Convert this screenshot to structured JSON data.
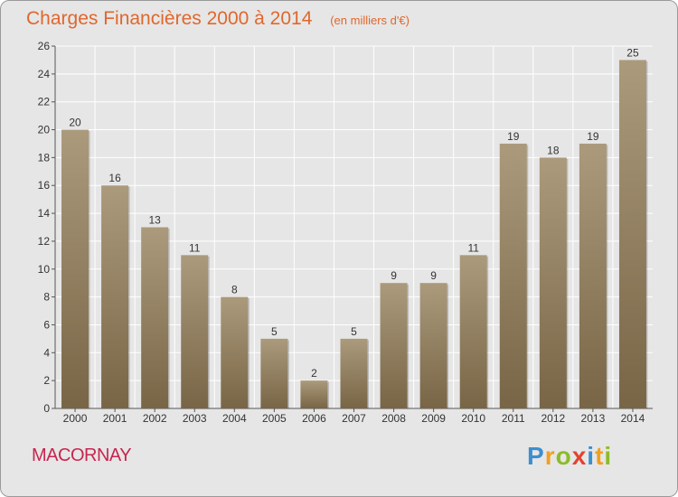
{
  "title": "Charges Financières 2000 à 2014",
  "subtitle": "(en milliers d'€)",
  "commune": "MACORNAY",
  "logo": {
    "text": "Proxiti",
    "letters": [
      {
        "ch": "P",
        "color": "#3c8fd0"
      },
      {
        "ch": "r",
        "color": "#f0a021"
      },
      {
        "ch": "o",
        "color": "#8dbb2a"
      },
      {
        "ch": "x",
        "color": "#e2432e"
      },
      {
        "ch": "i",
        "color": "#3c8fd0"
      },
      {
        "ch": "t",
        "color": "#f0a021"
      },
      {
        "ch": "i",
        "color": "#8dbb2a"
      }
    ]
  },
  "colors": {
    "bar_top": "#ab9a7c",
    "bar_bottom": "#786546",
    "title": "#e0672d",
    "commune": "#c8254f",
    "grid": "#ffffff",
    "background": "#e6e6e6"
  },
  "chart_data": {
    "type": "bar",
    "categories": [
      "2000",
      "2001",
      "2002",
      "2003",
      "2004",
      "2005",
      "2006",
      "2007",
      "2008",
      "2009",
      "2010",
      "2011",
      "2012",
      "2013",
      "2014"
    ],
    "values": [
      20,
      16,
      13,
      11,
      8,
      5,
      2,
      5,
      9,
      9,
      11,
      19,
      18,
      19,
      25
    ],
    "ylim": [
      0,
      26
    ],
    "yticks": [
      0,
      2,
      4,
      6,
      8,
      10,
      12,
      14,
      16,
      18,
      20,
      22,
      24,
      26
    ],
    "grid": true,
    "data_labels": true
  }
}
